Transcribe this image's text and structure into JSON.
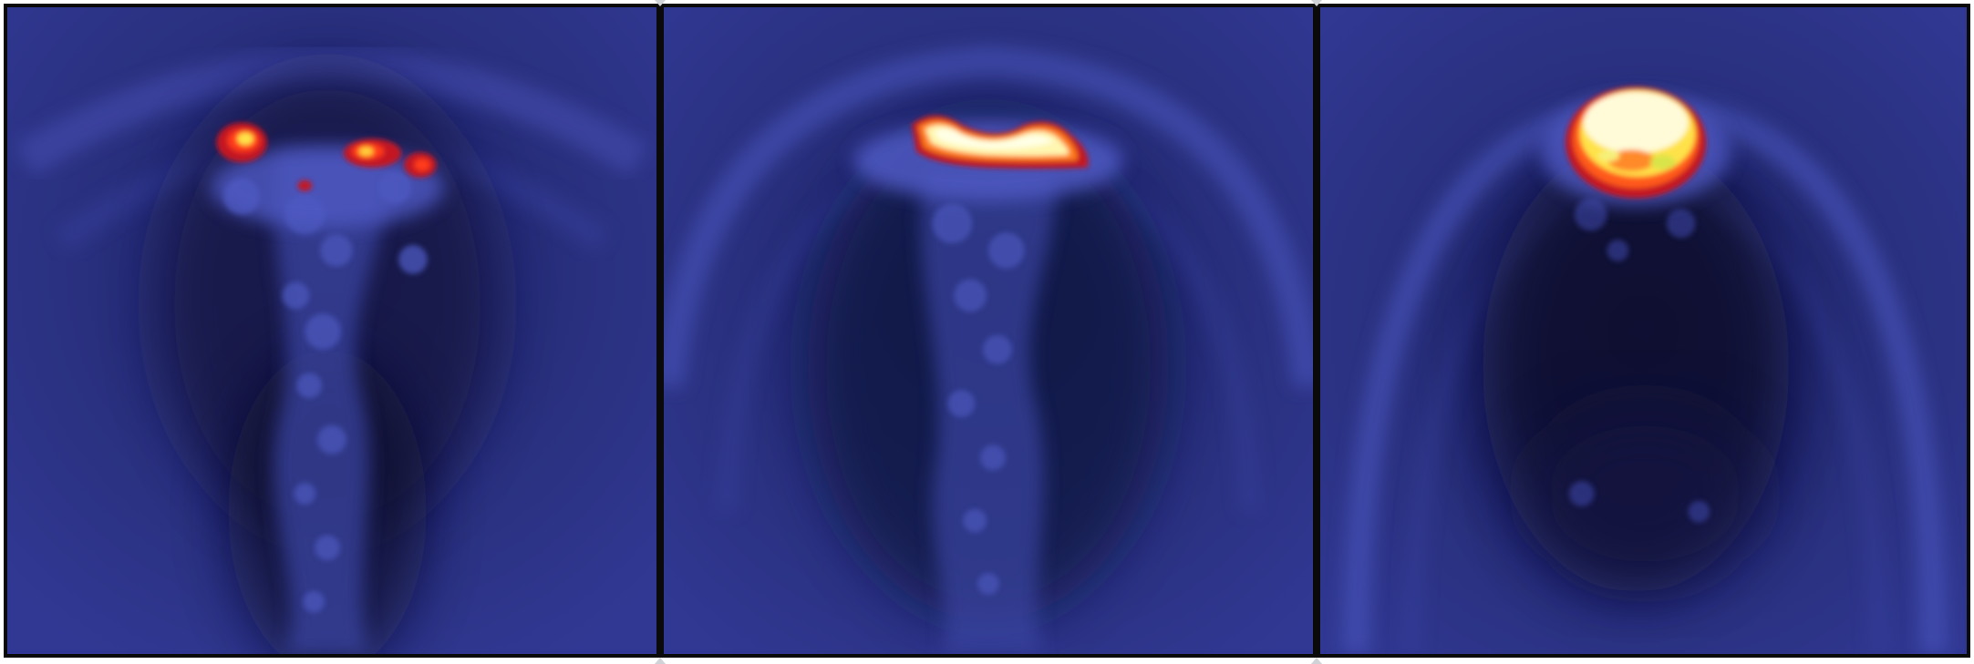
{
  "figure": {
    "panel_count": 3,
    "background_color": "#2c3383",
    "frame_color": "#0a0a0a",
    "palette": [
      "#07081c",
      "#1a1f5e",
      "#2c3383",
      "#4a56bf",
      "#c41820",
      "#ff3a1a",
      "#ffb300",
      "#ffffc8"
    ]
  }
}
